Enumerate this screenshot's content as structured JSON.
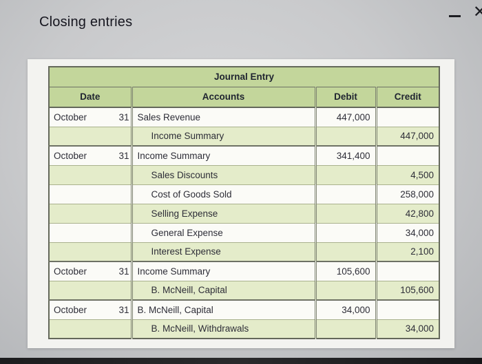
{
  "page": {
    "title": "Closing entries"
  },
  "window_controls": {
    "minimize": "",
    "close": "✕"
  },
  "table": {
    "title": "Journal Entry",
    "columns": [
      "Date",
      "Accounts",
      "Debit",
      "Credit"
    ],
    "rows": [
      {
        "month": "October",
        "day": "31",
        "account": "Sales Revenue",
        "indent": false,
        "debit": "447,000",
        "credit": "",
        "new_entry": true
      },
      {
        "month": "",
        "day": "",
        "account": "Income Summary",
        "indent": true,
        "debit": "",
        "credit": "447,000",
        "new_entry": false
      },
      {
        "month": "October",
        "day": "31",
        "account": "Income Summary",
        "indent": false,
        "debit": "341,400",
        "credit": "",
        "new_entry": true
      },
      {
        "month": "",
        "day": "",
        "account": "Sales Discounts",
        "indent": true,
        "debit": "",
        "credit": "4,500",
        "new_entry": false
      },
      {
        "month": "",
        "day": "",
        "account": "Cost of Goods Sold",
        "indent": true,
        "debit": "",
        "credit": "258,000",
        "new_entry": false
      },
      {
        "month": "",
        "day": "",
        "account": "Selling Expense",
        "indent": true,
        "debit": "",
        "credit": "42,800",
        "new_entry": false
      },
      {
        "month": "",
        "day": "",
        "account": "General Expense",
        "indent": true,
        "debit": "",
        "credit": "34,000",
        "new_entry": false
      },
      {
        "month": "",
        "day": "",
        "account": "Interest Expense",
        "indent": true,
        "debit": "",
        "credit": "2,100",
        "new_entry": false
      },
      {
        "month": "October",
        "day": "31",
        "account": "Income Summary",
        "indent": false,
        "debit": "105,600",
        "credit": "",
        "new_entry": true
      },
      {
        "month": "",
        "day": "",
        "account": "B. McNeill, Capital",
        "indent": true,
        "debit": "",
        "credit": "105,600",
        "new_entry": false
      },
      {
        "month": "October",
        "day": "31",
        "account": "B. McNeill, Capital",
        "indent": false,
        "debit": "34,000",
        "credit": "",
        "new_entry": true
      },
      {
        "month": "",
        "day": "",
        "account": "B. McNeill, Withdrawals",
        "indent": true,
        "debit": "",
        "credit": "34,000",
        "new_entry": false
      }
    ],
    "colors": {
      "header_green": "#c3d69b",
      "row_green": "#e4ecca",
      "row_white": "#fbfbf7"
    }
  }
}
